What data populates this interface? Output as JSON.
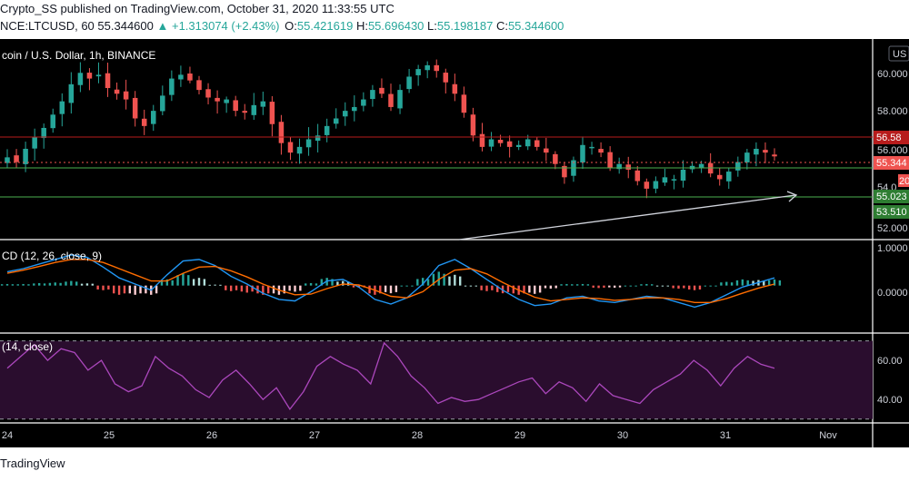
{
  "header": {
    "publish_line": "Crypto_SS published on TradingView.com, October 31, 2020 11:33:55 UTC",
    "symbol_code": "NCE:LTCUSD, 60",
    "last": "55.344600",
    "change": "▲ +1.313074 (+2.43%)",
    "o_label": "O:",
    "o_value": "55.421619",
    "h_label": "H:",
    "h_value": "55.696430",
    "l_label": "L:",
    "l_value": "55.198187",
    "c_label": "C:",
    "c_value": "55.344600"
  },
  "chart_title": "coin / U.S. Dollar, 1h, BINANCE",
  "currency_button": "US",
  "macd_label": "CD (12, 26, close, 9)",
  "rsi_label": "(14, close)",
  "footer": {
    "brand": "TradingView"
  },
  "colors": {
    "up": "#26a69a",
    "down": "#ef5350",
    "macd_line": "#2196f3",
    "signal_line": "#ff6d00",
    "rsi_line": "#ab47bc",
    "rsi_band": "#2a0d2e",
    "resistance": "#b71c1c",
    "support": "#4caf50",
    "trendline": "#d1d4dc"
  },
  "chart_data": [
    {
      "type": "candlestick",
      "title": "coin / U.S. Dollar, 1h, BINANCE",
      "x_ticks": [
        "24",
        "25",
        "26",
        "27",
        "28",
        "29",
        "30",
        "31",
        "Nov"
      ],
      "y_ticks": [
        "60.000",
        "58.000",
        "56.000",
        "54.0",
        "52.000"
      ],
      "ylim": [
        51.4,
        61.2
      ],
      "close": [
        55.35,
        55.1,
        55.8,
        56.4,
        56.9,
        57.6,
        58.3,
        59.2,
        59.8,
        59.5,
        59.7,
        59.0,
        58.7,
        58.4,
        57.4,
        57.0,
        57.8,
        58.6,
        59.5,
        59.7,
        59.4,
        58.9,
        58.5,
        58.3,
        58.4,
        57.8,
        57.7,
        58.1,
        58.3,
        57.1,
        56.1,
        55.6,
        55.9,
        56.3,
        56.5,
        57.0,
        57.4,
        57.8,
        58.0,
        58.4,
        58.9,
        58.7,
        58.0,
        58.9,
        59.6,
        60.0,
        60.2,
        59.9,
        59.3,
        58.7,
        57.7,
        56.5,
        55.9,
        56.3,
        56.1,
        55.9,
        56.0,
        56.3,
        55.9,
        55.6,
        55.0,
        54.3,
        55.2,
        56.0,
        55.9,
        55.6,
        54.8,
        55.0,
        54.7,
        54.1,
        53.7,
        54.1,
        54.3,
        54.2,
        54.7,
        54.9,
        55.0,
        54.5,
        54.2,
        54.6,
        55.1,
        55.6,
        55.8,
        55.6,
        55.4
      ],
      "series": [
        {
          "name": "",
          "values": [
            56.58
          ]
        },
        {
          "name": "",
          "values": [
            55.344
          ]
        },
        {
          "name": "",
          "values": [
            55.023
          ]
        },
        {
          "name": "",
          "values": [
            53.51
          ]
        }
      ],
      "price_labels": [
        "56.58",
        "55.344",
        "55.023",
        "53.510",
        "20"
      ],
      "grid": false
    },
    {
      "type": "line",
      "title": "CD (12, 26, close, 9)",
      "y_ticks": [
        "1.0000",
        "0.0000"
      ],
      "ylim": [
        -1.25,
        1.2
      ],
      "series": [
        {
          "name": "MACD",
          "values": [
            0.45,
            0.55,
            0.7,
            0.85,
            1.0,
            0.92,
            0.6,
            0.25,
            0.05,
            -0.15,
            0.35,
            0.8,
            0.85,
            0.65,
            0.3,
            0.05,
            -0.25,
            -0.45,
            -0.5,
            -0.2,
            0.15,
            0.2,
            -0.05,
            -0.45,
            -0.6,
            -0.4,
            0.05,
            0.65,
            0.85,
            0.55,
            0.2,
            -0.15,
            -0.45,
            -0.65,
            -0.6,
            -0.4,
            -0.35,
            -0.5,
            -0.55,
            -0.45,
            -0.35,
            -0.4,
            -0.55,
            -0.7,
            -0.55,
            -0.3,
            -0.05,
            0.1,
            0.25
          ]
        },
        {
          "name": "Signal",
          "values": [
            0.4,
            0.5,
            0.62,
            0.75,
            0.85,
            0.85,
            0.75,
            0.55,
            0.35,
            0.15,
            0.15,
            0.4,
            0.6,
            0.62,
            0.48,
            0.28,
            0.05,
            -0.15,
            -0.3,
            -0.28,
            -0.1,
            0.05,
            0.02,
            -0.15,
            -0.35,
            -0.4,
            -0.2,
            0.2,
            0.5,
            0.55,
            0.38,
            0.1,
            -0.15,
            -0.38,
            -0.5,
            -0.45,
            -0.4,
            -0.42,
            -0.48,
            -0.45,
            -0.4,
            -0.4,
            -0.45,
            -0.55,
            -0.55,
            -0.42,
            -0.25,
            -0.08,
            0.05
          ]
        }
      ],
      "hist": [
        0.05,
        0.05,
        0.08,
        0.1,
        0.15,
        0.07,
        -0.15,
        -0.3,
        -0.3,
        -0.3,
        0.2,
        0.4,
        0.25,
        0.03,
        -0.18,
        -0.23,
        -0.3,
        -0.3,
        -0.2,
        0.08,
        0.25,
        0.15,
        -0.07,
        -0.3,
        -0.25,
        0.0,
        0.25,
        0.45,
        0.35,
        0.0,
        -0.18,
        -0.25,
        -0.3,
        -0.27,
        -0.1,
        0.05,
        0.05,
        -0.08,
        -0.07,
        0.0,
        0.05,
        0.0,
        -0.1,
        -0.15,
        0.0,
        0.12,
        0.2,
        0.18,
        0.2
      ]
    },
    {
      "type": "line",
      "title": "(14, close)",
      "y_ticks": [
        "60.00",
        "40.00"
      ],
      "ylim": [
        28,
        74
      ],
      "bands": [
        30,
        70
      ],
      "series": [
        {
          "name": "RSI",
          "values": [
            56,
            62,
            68,
            60,
            66,
            64,
            55,
            60,
            48,
            44,
            47,
            62,
            56,
            52,
            45,
            41,
            50,
            55,
            48,
            40,
            46,
            35,
            44,
            57,
            62,
            58,
            55,
            48,
            69,
            62,
            52,
            46,
            38,
            41,
            39,
            40,
            43,
            46,
            49,
            51,
            43,
            49,
            46,
            39,
            48,
            42,
            40,
            38,
            45,
            49,
            53,
            60,
            55,
            47,
            56,
            62,
            58,
            56
          ]
        }
      ]
    }
  ]
}
